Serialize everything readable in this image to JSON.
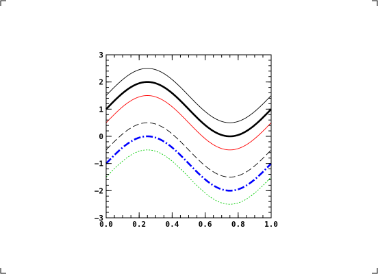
{
  "chart_data": {
    "type": "line",
    "title": "",
    "xlabel": "",
    "ylabel": "",
    "xlim": [
      0.0,
      1.0
    ],
    "ylim": [
      -3,
      3
    ],
    "grid": false,
    "xticks": [
      0.0,
      0.2,
      0.4,
      0.6,
      0.8,
      1.0
    ],
    "xtick_labels": [
      "0.0",
      "0.2",
      "0.4",
      "0.6",
      "0.8",
      "1.0"
    ],
    "yticks": [
      -3,
      -2,
      -1,
      0,
      1,
      2,
      3
    ],
    "ytick_labels": [
      "-3",
      "-2",
      "-1",
      "0",
      "1",
      "2",
      "3"
    ],
    "function": "y = offset + sin(2*pi*x)",
    "series": [
      {
        "offset": 1.5,
        "color": "#000000",
        "style": "solid",
        "weight": "thin"
      },
      {
        "offset": 1.0,
        "color": "#000000",
        "style": "solid",
        "weight": "thick"
      },
      {
        "offset": 0.5,
        "color": "#ff0000",
        "style": "solid",
        "weight": "thin"
      },
      {
        "offset": -0.5,
        "color": "#000000",
        "style": "dashed",
        "weight": "thin"
      },
      {
        "offset": -1.0,
        "color": "#0000ff",
        "style": "dash-dot",
        "weight": "thick"
      },
      {
        "offset": -1.5,
        "color": "#00cc00",
        "style": "dotted",
        "weight": "thin"
      }
    ]
  }
}
